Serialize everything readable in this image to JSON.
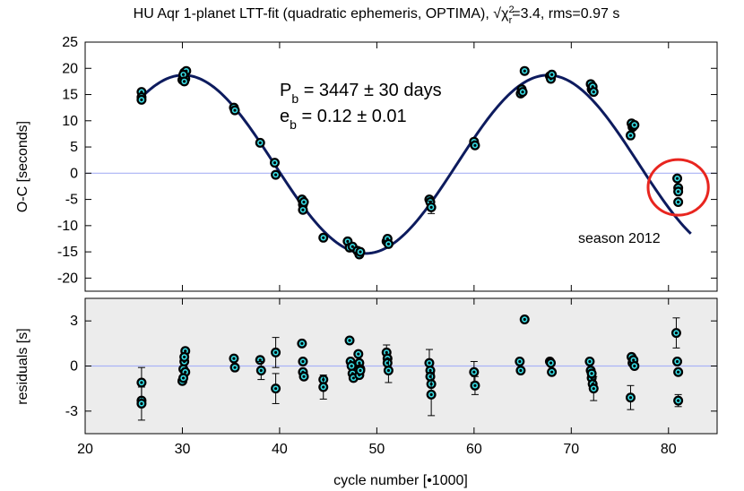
{
  "chart_data": [
    {
      "type": "scatter",
      "panel": "top",
      "title": "HU Aqr 1-planet LTT-fit (quadratic ephemeris, OPTIMA), √χ²ᵣ=3.4, rms=0.97 s",
      "title_parts": {
        "prefix": "HU Aqr 1-planet LTT-fit (quadratic ephemeris, OPTIMA), ",
        "sqrt": "√",
        "chi": "χ",
        "sup": "2",
        "sub": "r",
        "suffix": "=3.4, rms=0.97 s"
      },
      "xlabel": "cycle number [•1000]",
      "ylabel": "O-C [seconds]",
      "xlim": [
        20,
        85
      ],
      "ylim": [
        -22.5,
        25
      ],
      "xticks": [
        20,
        30,
        40,
        50,
        60,
        70,
        80
      ],
      "yticks": [
        -20,
        -15,
        -10,
        -5,
        0,
        5,
        10,
        15,
        20,
        25
      ],
      "grid": false,
      "reference_line_y": 0,
      "model_curve": {
        "style": "solid",
        "color": "#0d1b5e",
        "x_range": [
          25.5,
          82.3
        ],
        "amplitude": 17,
        "offset": 1.7,
        "period_kcycles": 37.5,
        "phase_peak_x": 30.1
      },
      "series": [
        {
          "x": [
            25.8,
            25.8,
            25.8,
            30.0,
            30.1,
            30.2,
            30.3,
            30.4,
            30.1,
            30.2,
            35.3,
            35.4,
            38.0,
            39.5,
            39.6,
            42.3,
            42.4,
            42.4,
            42.5,
            44.5,
            47.0,
            47.2,
            47.5,
            48.0,
            48.2,
            48.3,
            51.0,
            51.1,
            51.2,
            55.4,
            55.5,
            55.6,
            60.0,
            60.1,
            64.8,
            64.9,
            65.0,
            65.2,
            67.8,
            67.9,
            68.0,
            72.0,
            72.1,
            72.2,
            72.3,
            76.2,
            76.3,
            76.4,
            76.5,
            76.1,
            80.9,
            81.0,
            81.0,
            81.0
          ],
          "y": [
            15.5,
            14.5,
            14.0,
            17.8,
            18.5,
            19.2,
            18.0,
            19.5,
            18.8,
            17.5,
            12.5,
            12.0,
            5.8,
            2.0,
            -0.3,
            -5.0,
            -6.0,
            -7.0,
            -5.5,
            -12.3,
            -13.0,
            -14.2,
            -14.0,
            -14.8,
            -15.5,
            -15.0,
            -13.0,
            -12.5,
            -13.5,
            -5.0,
            -5.5,
            -6.5,
            6.0,
            5.3,
            15.2,
            16.0,
            15.5,
            19.5,
            18.5,
            18.0,
            18.8,
            17.0,
            16.0,
            16.5,
            15.5,
            9.5,
            8.8,
            9.0,
            9.2,
            7.2,
            -1.0,
            -2.8,
            -3.5,
            -5.5
          ],
          "yerr": [
            0,
            0,
            0,
            0,
            0,
            0,
            0,
            0,
            0,
            0,
            0,
            0,
            0,
            0,
            0,
            0,
            0,
            0,
            0,
            0,
            0,
            0,
            0,
            0,
            0,
            0,
            0,
            0,
            0,
            0,
            0,
            1.2,
            0,
            0,
            0,
            0,
            0,
            0,
            0,
            0,
            0,
            0,
            0,
            0,
            0,
            0,
            0,
            0,
            0,
            0,
            0,
            0,
            0,
            0
          ],
          "marker": "circle, black edge, cyan fill"
        }
      ],
      "annotations": [
        {
          "type": "text",
          "text_parts": {
            "p": "P",
            "p_sub": "b",
            "p_rest": " = 3447 ± 30 days"
          },
          "position": "upper-center"
        },
        {
          "type": "text",
          "text_parts": {
            "e": "e",
            "e_sub": "b",
            "e_rest": " = 0.12 ± 0.01"
          },
          "position": "upper-center"
        },
        {
          "type": "text",
          "text": "season 2012",
          "position": "lower-right"
        },
        {
          "type": "circle",
          "color": "#e8251f",
          "center_x": 81.0,
          "center_y": -2.7,
          "radius_x": 3.1,
          "radius_y": 5.3
        }
      ],
      "colors": {
        "model": "#0d1b5e",
        "reference_line": "#a9b3f5",
        "marker_fill": "#38e0e8",
        "marker_edge": "#000000",
        "highlight_circle": "#e8251f",
        "background": "#ffffff"
      }
    },
    {
      "type": "scatter",
      "panel": "bottom",
      "xlabel": "cycle number [•1000]",
      "ylabel": "residuals [s]",
      "xlim": [
        20,
        85
      ],
      "ylim": [
        -4.5,
        4.5
      ],
      "xticks": [
        20,
        30,
        40,
        50,
        60,
        70,
        80
      ],
      "yticks": [
        -3,
        0,
        3
      ],
      "grid": false,
      "reference_line_y": 0,
      "series": [
        {
          "x": [
            25.8,
            25.8,
            25.8,
            30.0,
            30.1,
            30.2,
            30.3,
            30.2,
            30.3,
            30.1,
            35.3,
            35.4,
            38.0,
            38.1,
            39.6,
            39.6,
            42.3,
            42.4,
            42.4,
            42.5,
            44.5,
            44.5,
            47.2,
            47.3,
            47.4,
            47.5,
            47.6,
            48.1,
            48.2,
            48.3,
            48.2,
            48.3,
            51.0,
            51.1,
            51.1,
            51.2,
            55.4,
            55.5,
            55.5,
            55.6,
            55.6,
            60.0,
            60.1,
            64.7,
            64.8,
            65.2,
            67.8,
            67.9,
            68.0,
            71.9,
            72.0,
            72.1,
            72.2,
            72.3,
            72.1,
            76.2,
            76.3,
            76.4,
            76.5,
            76.1,
            80.8,
            80.9,
            81.0,
            81.0
          ],
          "y": [
            -1.1,
            -2.3,
            -2.5,
            -1.0,
            -0.2,
            0.3,
            1.0,
            0.6,
            -0.4,
            -0.8,
            0.5,
            -0.1,
            0.4,
            -0.3,
            0.9,
            -1.5,
            1.5,
            0.3,
            -0.4,
            -0.7,
            -0.9,
            -1.4,
            1.7,
            0.3,
            0.0,
            -0.5,
            -0.8,
            0.8,
            0.2,
            -0.2,
            -0.6,
            -0.3,
            0.9,
            0.5,
            0.2,
            -0.3,
            0.2,
            -0.3,
            -0.7,
            -1.2,
            -1.9,
            -0.4,
            -1.3,
            0.3,
            -0.3,
            3.1,
            0.3,
            0.2,
            -0.4,
            0.3,
            -0.3,
            -0.8,
            -1.2,
            -1.5,
            -0.5,
            0.6,
            0.2,
            0.4,
            0.0,
            -2.1,
            2.2,
            0.3,
            -0.4,
            -2.3
          ],
          "yerr": [
            1.0,
            0,
            1.1,
            0,
            0,
            0,
            0,
            0,
            0,
            0,
            0,
            0,
            0,
            0.6,
            1.0,
            1.0,
            0,
            0,
            0,
            0,
            0,
            0.8,
            0,
            0,
            0,
            0,
            0,
            0,
            0,
            0,
            0,
            0,
            0.5,
            0,
            0,
            0.8,
            0.9,
            0,
            0,
            0,
            1.4,
            0.7,
            0.6,
            0,
            0,
            0,
            0,
            0,
            0,
            0,
            0,
            0,
            0,
            0.8,
            0,
            0,
            0,
            0,
            0,
            0.8,
            1.0,
            0,
            0,
            0.4
          ],
          "marker": "circle, black edge, cyan fill"
        }
      ],
      "colors": {
        "reference_line": "#a9b3f5",
        "marker_fill": "#38e0e8",
        "marker_edge": "#000000",
        "background": "#ececec"
      }
    }
  ]
}
